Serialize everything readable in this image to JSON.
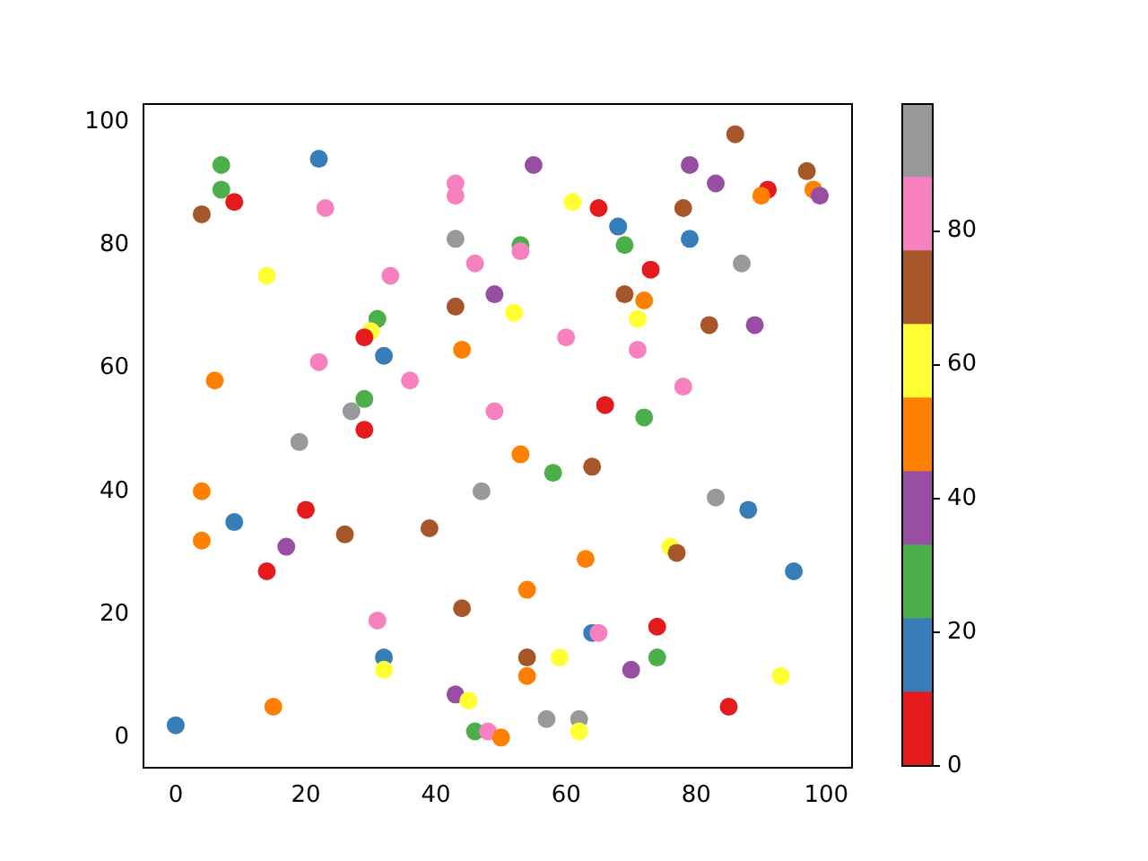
{
  "chart_data": {
    "type": "scatter",
    "marker": "circle",
    "grid": false,
    "x": [
      0,
      4,
      7,
      7,
      9,
      22,
      23,
      14,
      33,
      43,
      43,
      43,
      46,
      55,
      53,
      53,
      61,
      65,
      68,
      69,
      79,
      83,
      78,
      79,
      86,
      97,
      91,
      90,
      98,
      99,
      87,
      73,
      69,
      72,
      71,
      82,
      89,
      60,
      71,
      78,
      52,
      49,
      43,
      44,
      31,
      30,
      29,
      32,
      22,
      36,
      6,
      29,
      27,
      29,
      49,
      66,
      72,
      19,
      53,
      58,
      64,
      47,
      4,
      20,
      9,
      4,
      17,
      26,
      39,
      14,
      31,
      32,
      32,
      15,
      44,
      43,
      45,
      46,
      48,
      50,
      54,
      63,
      54,
      54,
      59,
      64,
      65,
      57,
      62,
      62,
      70,
      74,
      74,
      76,
      77,
      83,
      88,
      95,
      85,
      93
    ],
    "values": [
      2,
      85,
      93,
      89,
      87,
      94,
      86,
      75,
      75,
      90,
      88,
      81,
      77,
      93,
      80,
      79,
      87,
      86,
      83,
      80,
      93,
      90,
      86,
      81,
      98,
      92,
      89,
      88,
      89,
      88,
      77,
      76,
      72,
      71,
      68,
      67,
      67,
      65,
      63,
      57,
      69,
      72,
      70,
      63,
      68,
      66,
      65,
      62,
      61,
      58,
      58,
      55,
      53,
      50,
      53,
      54,
      52,
      48,
      46,
      43,
      44,
      40,
      40,
      37,
      35,
      32,
      31,
      33,
      34,
      27,
      19,
      13,
      11,
      5,
      21,
      7,
      6,
      1,
      1,
      0,
      24,
      29,
      13,
      10,
      13,
      17,
      17,
      3,
      3,
      1,
      11,
      13,
      18,
      31,
      30,
      39,
      37,
      27,
      5,
      10
    ],
    "colors": [
      "#377eb8",
      "#a65628",
      "#4daf4a",
      "#4daf4a",
      "#e41a1c",
      "#377eb8",
      "#f781bf",
      "#ffff33",
      "#f781bf",
      "#f781bf",
      "#f781bf",
      "#999999",
      "#f781bf",
      "#984ea3",
      "#4daf4a",
      "#f781bf",
      "#ffff33",
      "#e41a1c",
      "#377eb8",
      "#4daf4a",
      "#984ea3",
      "#984ea3",
      "#a65628",
      "#377eb8",
      "#a65628",
      "#a65628",
      "#e41a1c",
      "#ff7f00",
      "#ff7f00",
      "#984ea3",
      "#999999",
      "#e41a1c",
      "#a65628",
      "#ff7f00",
      "#ffff33",
      "#a65628",
      "#984ea3",
      "#f781bf",
      "#f781bf",
      "#f781bf",
      "#ffff33",
      "#984ea3",
      "#a65628",
      "#ff7f00",
      "#4daf4a",
      "#ffff33",
      "#e41a1c",
      "#377eb8",
      "#f781bf",
      "#f781bf",
      "#ff7f00",
      "#4daf4a",
      "#999999",
      "#e41a1c",
      "#f781bf",
      "#e41a1c",
      "#4daf4a",
      "#999999",
      "#ff7f00",
      "#4daf4a",
      "#a65628",
      "#999999",
      "#ff7f00",
      "#e41a1c",
      "#377eb8",
      "#ff7f00",
      "#984ea3",
      "#a65628",
      "#a65628",
      "#e41a1c",
      "#f781bf",
      "#377eb8",
      "#ffff33",
      "#ff7f00",
      "#a65628",
      "#984ea3",
      "#ffff33",
      "#4daf4a",
      "#f781bf",
      "#ff7f00",
      "#ff7f00",
      "#ff7f00",
      "#a65628",
      "#ff7f00",
      "#ffff33",
      "#377eb8",
      "#f781bf",
      "#999999",
      "#999999",
      "#ffff33",
      "#984ea3",
      "#4daf4a",
      "#e41a1c",
      "#ffff33",
      "#a65628",
      "#999999",
      "#377eb8",
      "#377eb8",
      "#e41a1c",
      "#ffff33"
    ],
    "xlim": [
      -4.95,
      103.95
    ],
    "ylim": [
      -4.9,
      102.9
    ],
    "xticks": [
      0,
      20,
      40,
      60,
      80,
      100
    ],
    "yticks": [
      0,
      20,
      40,
      60,
      80,
      100
    ],
    "clim": [
      0,
      99
    ],
    "cticks": [
      0,
      20,
      40,
      60,
      80
    ]
  }
}
